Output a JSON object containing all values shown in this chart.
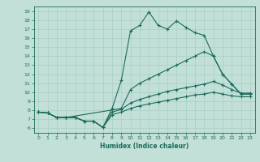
{
  "xlabel": "Humidex (Indice chaleur)",
  "xlim": [
    -0.5,
    23.5
  ],
  "ylim": [
    5.5,
    19.5
  ],
  "yticks": [
    6,
    7,
    8,
    9,
    10,
    11,
    12,
    13,
    14,
    15,
    16,
    17,
    18,
    19
  ],
  "xticks": [
    0,
    1,
    2,
    3,
    4,
    5,
    6,
    7,
    8,
    9,
    10,
    11,
    12,
    13,
    14,
    15,
    16,
    17,
    18,
    19,
    20,
    21,
    22,
    23
  ],
  "bg_color": "#c2e0d8",
  "line_color": "#1a6b5a",
  "grid_color": "#a8cec6",
  "line1_x": [
    0,
    1,
    2,
    3,
    4,
    5,
    6,
    7,
    8,
    9,
    10,
    11,
    12,
    13,
    14,
    15,
    16,
    17,
    18,
    19,
    20,
    21,
    22,
    23
  ],
  "line1_y": [
    7.8,
    7.7,
    7.2,
    7.2,
    7.2,
    6.8,
    6.8,
    6.1,
    8.2,
    11.3,
    16.8,
    17.4,
    18.9,
    17.4,
    17.0,
    17.9,
    17.2,
    16.6,
    16.3,
    14.0,
    12.0,
    10.9,
    9.8,
    9.8
  ],
  "line2_x": [
    0,
    1,
    2,
    3,
    9,
    10,
    11,
    12,
    13,
    14,
    15,
    16,
    17,
    18,
    19,
    20,
    21,
    22,
    23
  ],
  "line2_y": [
    7.8,
    7.7,
    7.2,
    7.2,
    8.2,
    10.3,
    11.0,
    11.5,
    12.0,
    12.5,
    13.0,
    13.5,
    14.0,
    14.5,
    14.0,
    12.0,
    10.9,
    9.8,
    9.8
  ],
  "line3_x": [
    0,
    1,
    2,
    3,
    4,
    5,
    6,
    7,
    8,
    9,
    10,
    11,
    12,
    13,
    14,
    15,
    16,
    17,
    18,
    19,
    20,
    21,
    22,
    23
  ],
  "line3_y": [
    7.8,
    7.7,
    7.2,
    7.2,
    7.2,
    6.8,
    6.8,
    6.1,
    7.8,
    8.1,
    8.8,
    9.2,
    9.5,
    9.8,
    10.1,
    10.3,
    10.5,
    10.7,
    10.9,
    11.2,
    10.8,
    10.3,
    9.9,
    9.9
  ],
  "line4_x": [
    0,
    1,
    2,
    3,
    4,
    5,
    6,
    7,
    8,
    9,
    10,
    11,
    12,
    13,
    14,
    15,
    16,
    17,
    18,
    19,
    20,
    21,
    22,
    23
  ],
  "line4_y": [
    7.8,
    7.7,
    7.2,
    7.2,
    7.2,
    6.8,
    6.8,
    6.1,
    7.5,
    7.8,
    8.2,
    8.5,
    8.7,
    8.9,
    9.1,
    9.3,
    9.5,
    9.7,
    9.8,
    10.0,
    9.8,
    9.6,
    9.5,
    9.5
  ]
}
